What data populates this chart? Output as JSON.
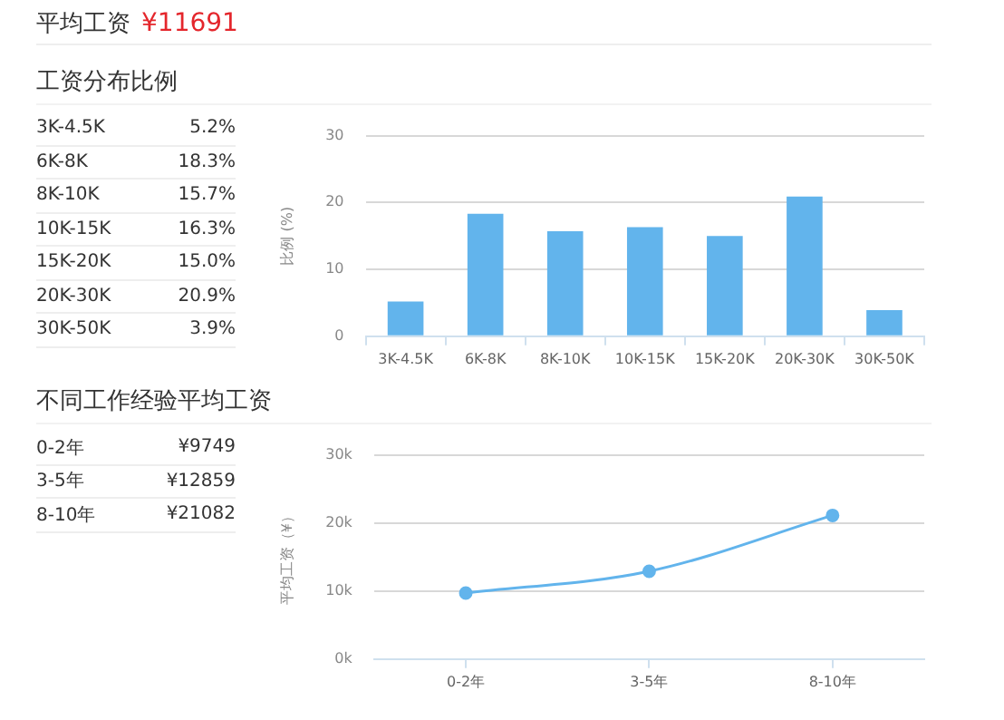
{
  "chart_data": [
    {
      "type": "other",
      "title": "平均工资",
      "annotations": [
        "¥11691"
      ]
    },
    {
      "type": "other",
      "title": "工资分布比例",
      "annotations": [
        "3K-4.5K",
        "5.2%",
        "6K-8K",
        "18.3%",
        "8K-10K",
        "15.7%",
        "10K-15K",
        "16.3%",
        "15K-20K",
        "15.0%",
        "20K-30K",
        "20.9%",
        "30K-50K",
        "3.9%"
      ]
    },
    {
      "type": "bar",
      "ylabel": "比例 (%)",
      "categories": [
        "3K-4.5K",
        "6K-8K",
        "8K-10K",
        "10K-15K",
        "15K-20K",
        "20K-30K",
        "30K-50K"
      ],
      "values": [
        5.2,
        18.3,
        15.7,
        16.3,
        15.0,
        20.9,
        3.9
      ],
      "color": "#62b4ec",
      "ylim": [
        0,
        30
      ],
      "yticks": [
        0,
        10,
        20,
        30
      ],
      "grid": "y"
    },
    {
      "type": "other",
      "title": "不同工作经验平均工资",
      "annotations": [
        "0-2年",
        "¥9749",
        "3-5年",
        "¥12859",
        "8-10年",
        "¥21082"
      ]
    },
    {
      "type": "line",
      "ylabel": "平均工资（¥）",
      "categories": [
        "0-2年",
        "3-5年",
        "8-10年"
      ],
      "values": [
        9700,
        12900,
        21100
      ],
      "color": "#62b4ec",
      "ylim": [
        0,
        30000
      ],
      "yticks": [
        {
          "value": 0,
          "label": "0k"
        },
        {
          "value": 10000,
          "label": "10k"
        },
        {
          "value": 20000,
          "label": "20k"
        },
        {
          "value": 30000,
          "label": "30k"
        }
      ],
      "grid": "y",
      "marker": "circle",
      "line_style": "solid"
    }
  ]
}
